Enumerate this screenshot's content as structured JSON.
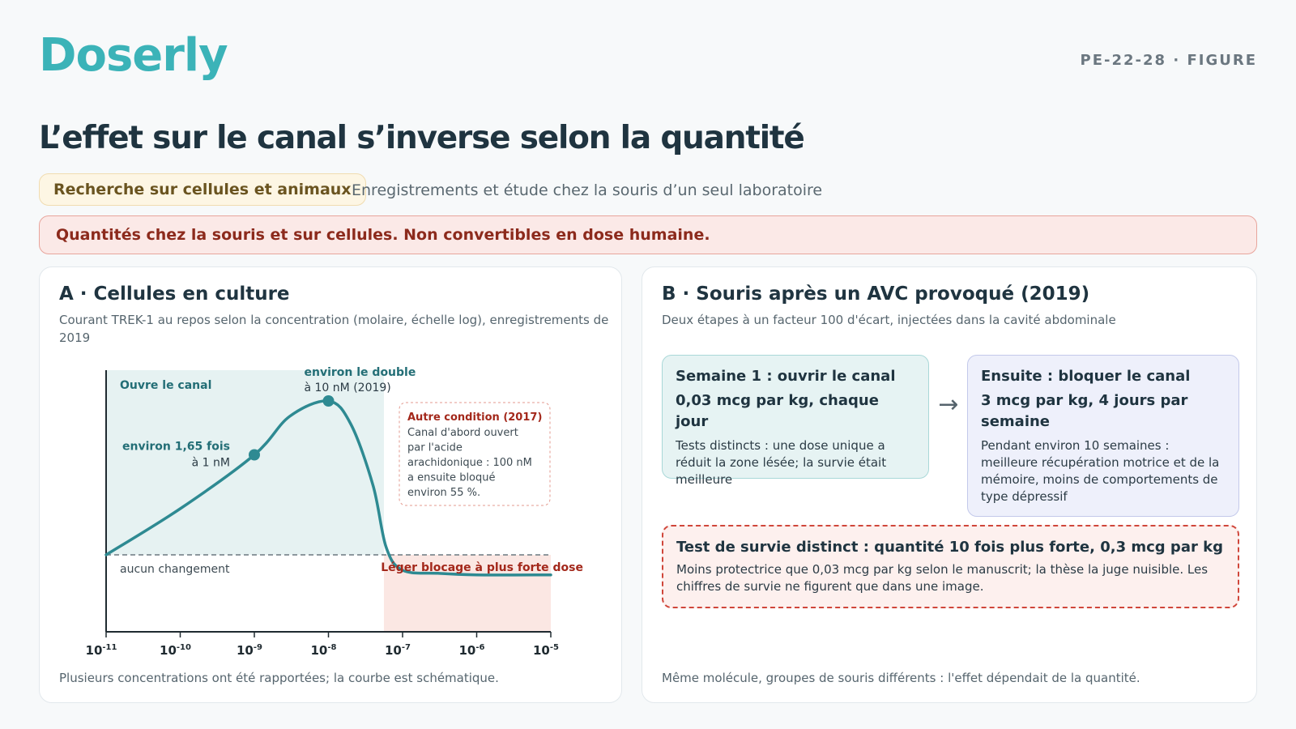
{
  "brand": {
    "logo": "Doserly",
    "tag": "PE-22-28 · FIGURE"
  },
  "title": "L’effet sur le canal s’inverse selon la quantité",
  "evidence": {
    "pill": "Recherche sur cellules et animaux",
    "note": "Enregistrements et étude chez la souris d’un seul laboratoire"
  },
  "warning": "Quantités chez la souris et sur cellules. Non convertibles en dose humaine.",
  "colors": {
    "accent": "#3bb3b8",
    "curve": "#2e8a92",
    "open_region": "#e6f2f2",
    "block_region": "#fbe7e3",
    "block_text": "#a3281b"
  },
  "panel_a": {
    "title": "A · Cellules en culture",
    "desc": "Courant TREK-1 au repos selon la concentration (molaire, échelle log), enregistrements de 2019",
    "footnote": "Plusieurs concentrations ont été rapportées; la courbe est schématique."
  },
  "chart_data": {
    "type": "line",
    "title": "",
    "xlabel": "",
    "ylabel": "",
    "x_scale": "log",
    "xlim": [
      1e-11,
      1e-05
    ],
    "x_ticks": [
      {
        "base": "10",
        "exp": "-11"
      },
      {
        "base": "10",
        "exp": "-10"
      },
      {
        "base": "10",
        "exp": "-9"
      },
      {
        "base": "10",
        "exp": "-8"
      },
      {
        "base": "10",
        "exp": "-7"
      },
      {
        "base": "10",
        "exp": "-6"
      },
      {
        "base": "10",
        "exp": "-5"
      }
    ],
    "y_unit": "fold change vs baseline (schematic)",
    "ylim": [
      0.5,
      2.2
    ],
    "grid": false,
    "baseline": 1.0,
    "series": [
      {
        "x": [
          1e-11,
          1e-10,
          1e-09,
          3e-09,
          1e-08,
          2e-08,
          4e-08,
          6e-08,
          1e-07,
          3e-07,
          1e-06,
          1e-05
        ],
        "y": [
          1.0,
          1.3,
          1.65,
          1.9,
          2.0,
          1.85,
          1.45,
          1.05,
          0.9,
          0.88,
          0.87,
          0.87
        ]
      }
    ],
    "points": [
      {
        "x": 1e-09,
        "y": 1.65,
        "label": "environ 1,65 fois",
        "label2": "à 1 nM"
      },
      {
        "x": 1e-08,
        "y": 2.0,
        "label": "environ le double",
        "label2": "à 10 nM (2019)"
      }
    ],
    "regions": {
      "open": {
        "x0": 1e-11,
        "x1": 5.6e-08,
        "label": "Ouvre le canal"
      },
      "block": {
        "x0": 5.6e-08,
        "x1": 1e-05,
        "label": "Léger blocage à plus forte dose"
      }
    },
    "baseline_label": "aucun changement",
    "annotation": {
      "title": "Autre condition (2017)",
      "lines": [
        "Canal d'abord ouvert",
        "par l'acide",
        "arachidonique : 100 nM",
        "a ensuite bloqué",
        "environ 55 %."
      ]
    }
  },
  "panel_b": {
    "title": "B · Souris après un AVC provoqué (2019)",
    "desc": "Deux étapes à un facteur 100 d'écart, injectées dans la cavité abdominale",
    "step1": {
      "title": "Semaine 1 : ouvrir le canal",
      "dose": "0,03 mcg par kg, chaque jour",
      "text": "Tests distincts : une dose unique a réduit la zone lésée; la survie était meilleure"
    },
    "step2": {
      "title": "Ensuite : bloquer le canal",
      "dose": "3 mcg par kg, 4 jours par semaine",
      "text": "Pendant environ 10 semaines : meilleure récupération motrice et de la mémoire, moins de comportements de type dépressif"
    },
    "arrow": "→",
    "survival": {
      "title": "Test de survie distinct : quantité 10 fois plus forte, 0,3 mcg par kg",
      "text": "Moins protectrice que 0,03 mcg par kg selon le manuscrit; la thèse la juge nuisible. Les chiffres de survie ne figurent que dans une image."
    },
    "footnote": "Même molécule, groupes de souris différents : l'effet dépendait de la quantité."
  }
}
